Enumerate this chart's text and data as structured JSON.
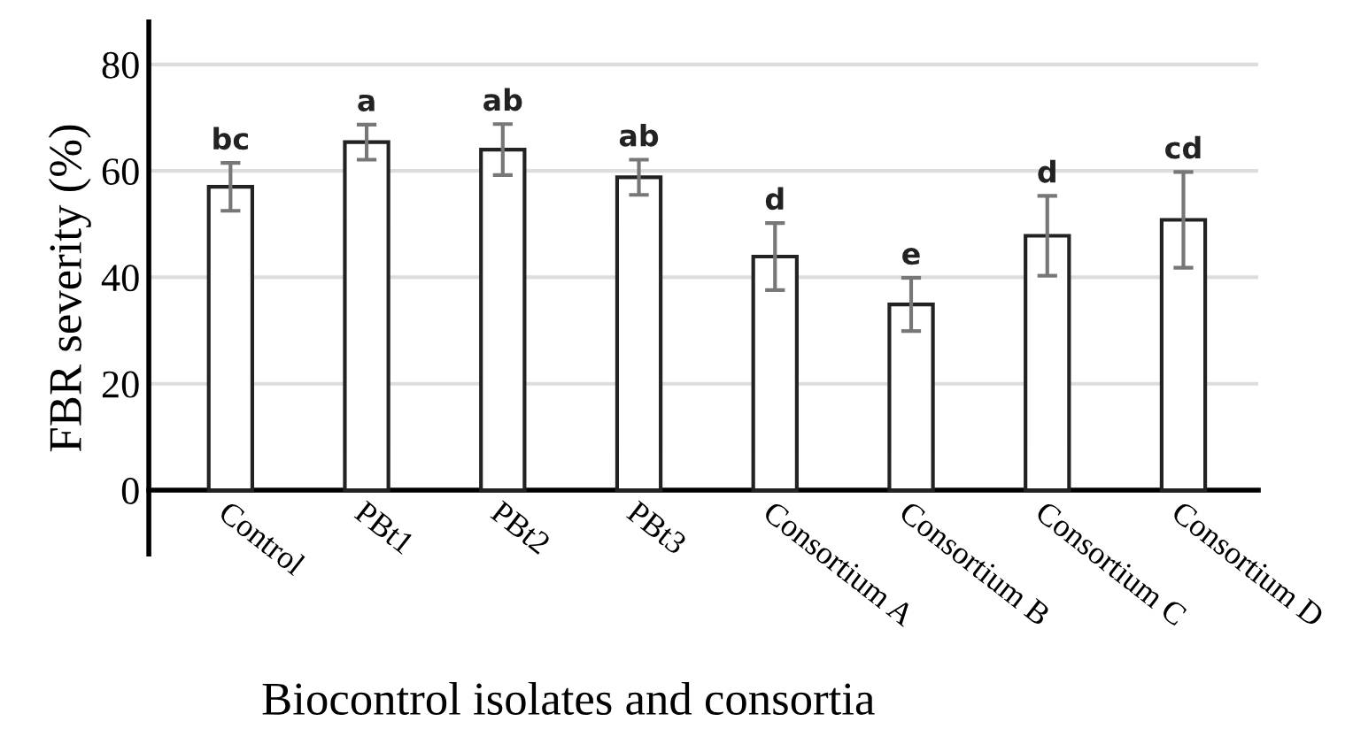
{
  "chart_data": {
    "type": "bar",
    "xlabel": "Biocontrol isolates and consortia",
    "ylabel": "FBR severity (%)",
    "categories": [
      "Control",
      "PBt1",
      "PBt2",
      "PBt3",
      "Consortium A",
      "Consortium B",
      "Consortium C",
      "Consortium D"
    ],
    "values": [
      57,
      65.4,
      64,
      58.8,
      43.9,
      34.9,
      47.8,
      50.8
    ],
    "errors": [
      4.5,
      3.3,
      4.8,
      3.3,
      6.3,
      5,
      7.5,
      9
    ],
    "color": "#ffffff",
    "ylim": [
      -12,
      88
    ],
    "yticks": [
      0,
      20,
      40,
      60,
      80
    ],
    "grid": "y",
    "annotations": [
      {
        "text": "bc",
        "x": "Control",
        "y": 61.5
      },
      {
        "text": "a",
        "x": "PBt1",
        "y": 68.7
      },
      {
        "text": "ab",
        "x": "PBt2",
        "y": 68.8
      },
      {
        "text": "ab",
        "x": "PBt3",
        "y": 62.1
      },
      {
        "text": "d",
        "x": "Consortium A",
        "y": 50.2
      },
      {
        "text": "e",
        "x": "Consortium B",
        "y": 39.9
      },
      {
        "text": "d",
        "x": "Consortium C",
        "y": 55.3
      },
      {
        "text": "cd",
        "x": "Consortium D",
        "y": 59.8
      }
    ]
  }
}
